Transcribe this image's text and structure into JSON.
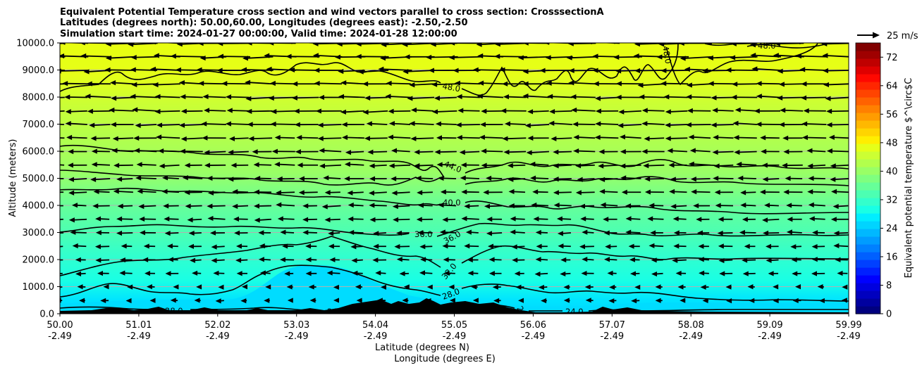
{
  "chart_data": {
    "type": "contourf",
    "title_lines": [
      "Equivalent Potential Temperature cross section and wind vectors parallel to cross section: CrosssectionA",
      "Latitudes (degrees north): 50.00,60.00, Longitudes (degrees east): -2.50,-2.50",
      "Simulation start time: 2024-01-27 00:00:00, Valid time: 2024-01-28 12:00:00"
    ],
    "ylabel": "Altitude (meters)",
    "xlabel_1": "Latitude (degrees N)",
    "xlabel_2": "Longitude (degrees E)",
    "ylim": [
      0,
      10000
    ],
    "yticks": [
      "0.0",
      "1000.0",
      "2000.0",
      "3000.0",
      "4000.0",
      "5000.0",
      "6000.0",
      "7000.0",
      "8000.0",
      "9000.0",
      "10000.0"
    ],
    "xlim": [
      50.0,
      59.99
    ],
    "xtick_lat": [
      "50.00",
      "51.01",
      "52.02",
      "53.03",
      "54.04",
      "55.05",
      "56.06",
      "57.07",
      "58.08",
      "59.09",
      "59.99"
    ],
    "xtick_lon": [
      "-2.49",
      "-2.49",
      "-2.49",
      "-2.49",
      "-2.49",
      "-2.49",
      "-2.49",
      "-2.49",
      "-2.49",
      "-2.49",
      "-2.49"
    ],
    "colorbar": {
      "label": "Equivalent potential temperature $^\\circ$C",
      "ticks": [
        "0",
        "8",
        "16",
        "24",
        "32",
        "40",
        "48",
        "56",
        "64",
        "72"
      ],
      "range": [
        0,
        76
      ],
      "colors": [
        "#00007f",
        "#00009f",
        "#0000bf",
        "#0000df",
        "#0000ff",
        "#0020ff",
        "#0040ff",
        "#0060ff",
        "#0080ff",
        "#009cff",
        "#00b8ff",
        "#00d4ff",
        "#00eeff",
        "#19ffe5",
        "#33ffcc",
        "#4cffb2",
        "#66ff99",
        "#7fff7f",
        "#99ff66",
        "#b2ff4c",
        "#ccff33",
        "#e5ff19",
        "#ffee00",
        "#ffd400",
        "#ffb800",
        "#ff9c00",
        "#ff8000",
        "#ff6200",
        "#ff4400",
        "#ff2600",
        "#ff0800",
        "#df0000",
        "#bf0000",
        "#9f0000",
        "#800000"
      ]
    },
    "quiver_key": {
      "label": "25 m/s",
      "speed": 25
    },
    "contour_labels": [
      "48.0",
      "48.0",
      "48.0",
      "44.0",
      "40.0",
      "36.0",
      "36.0",
      "32.0",
      "28.0",
      "28.0",
      "24.0",
      "24.0",
      "24.0"
    ],
    "contour_levels": [
      24,
      28,
      32,
      36,
      40,
      44,
      48
    ],
    "wind_u_mean_ms": -7
  }
}
